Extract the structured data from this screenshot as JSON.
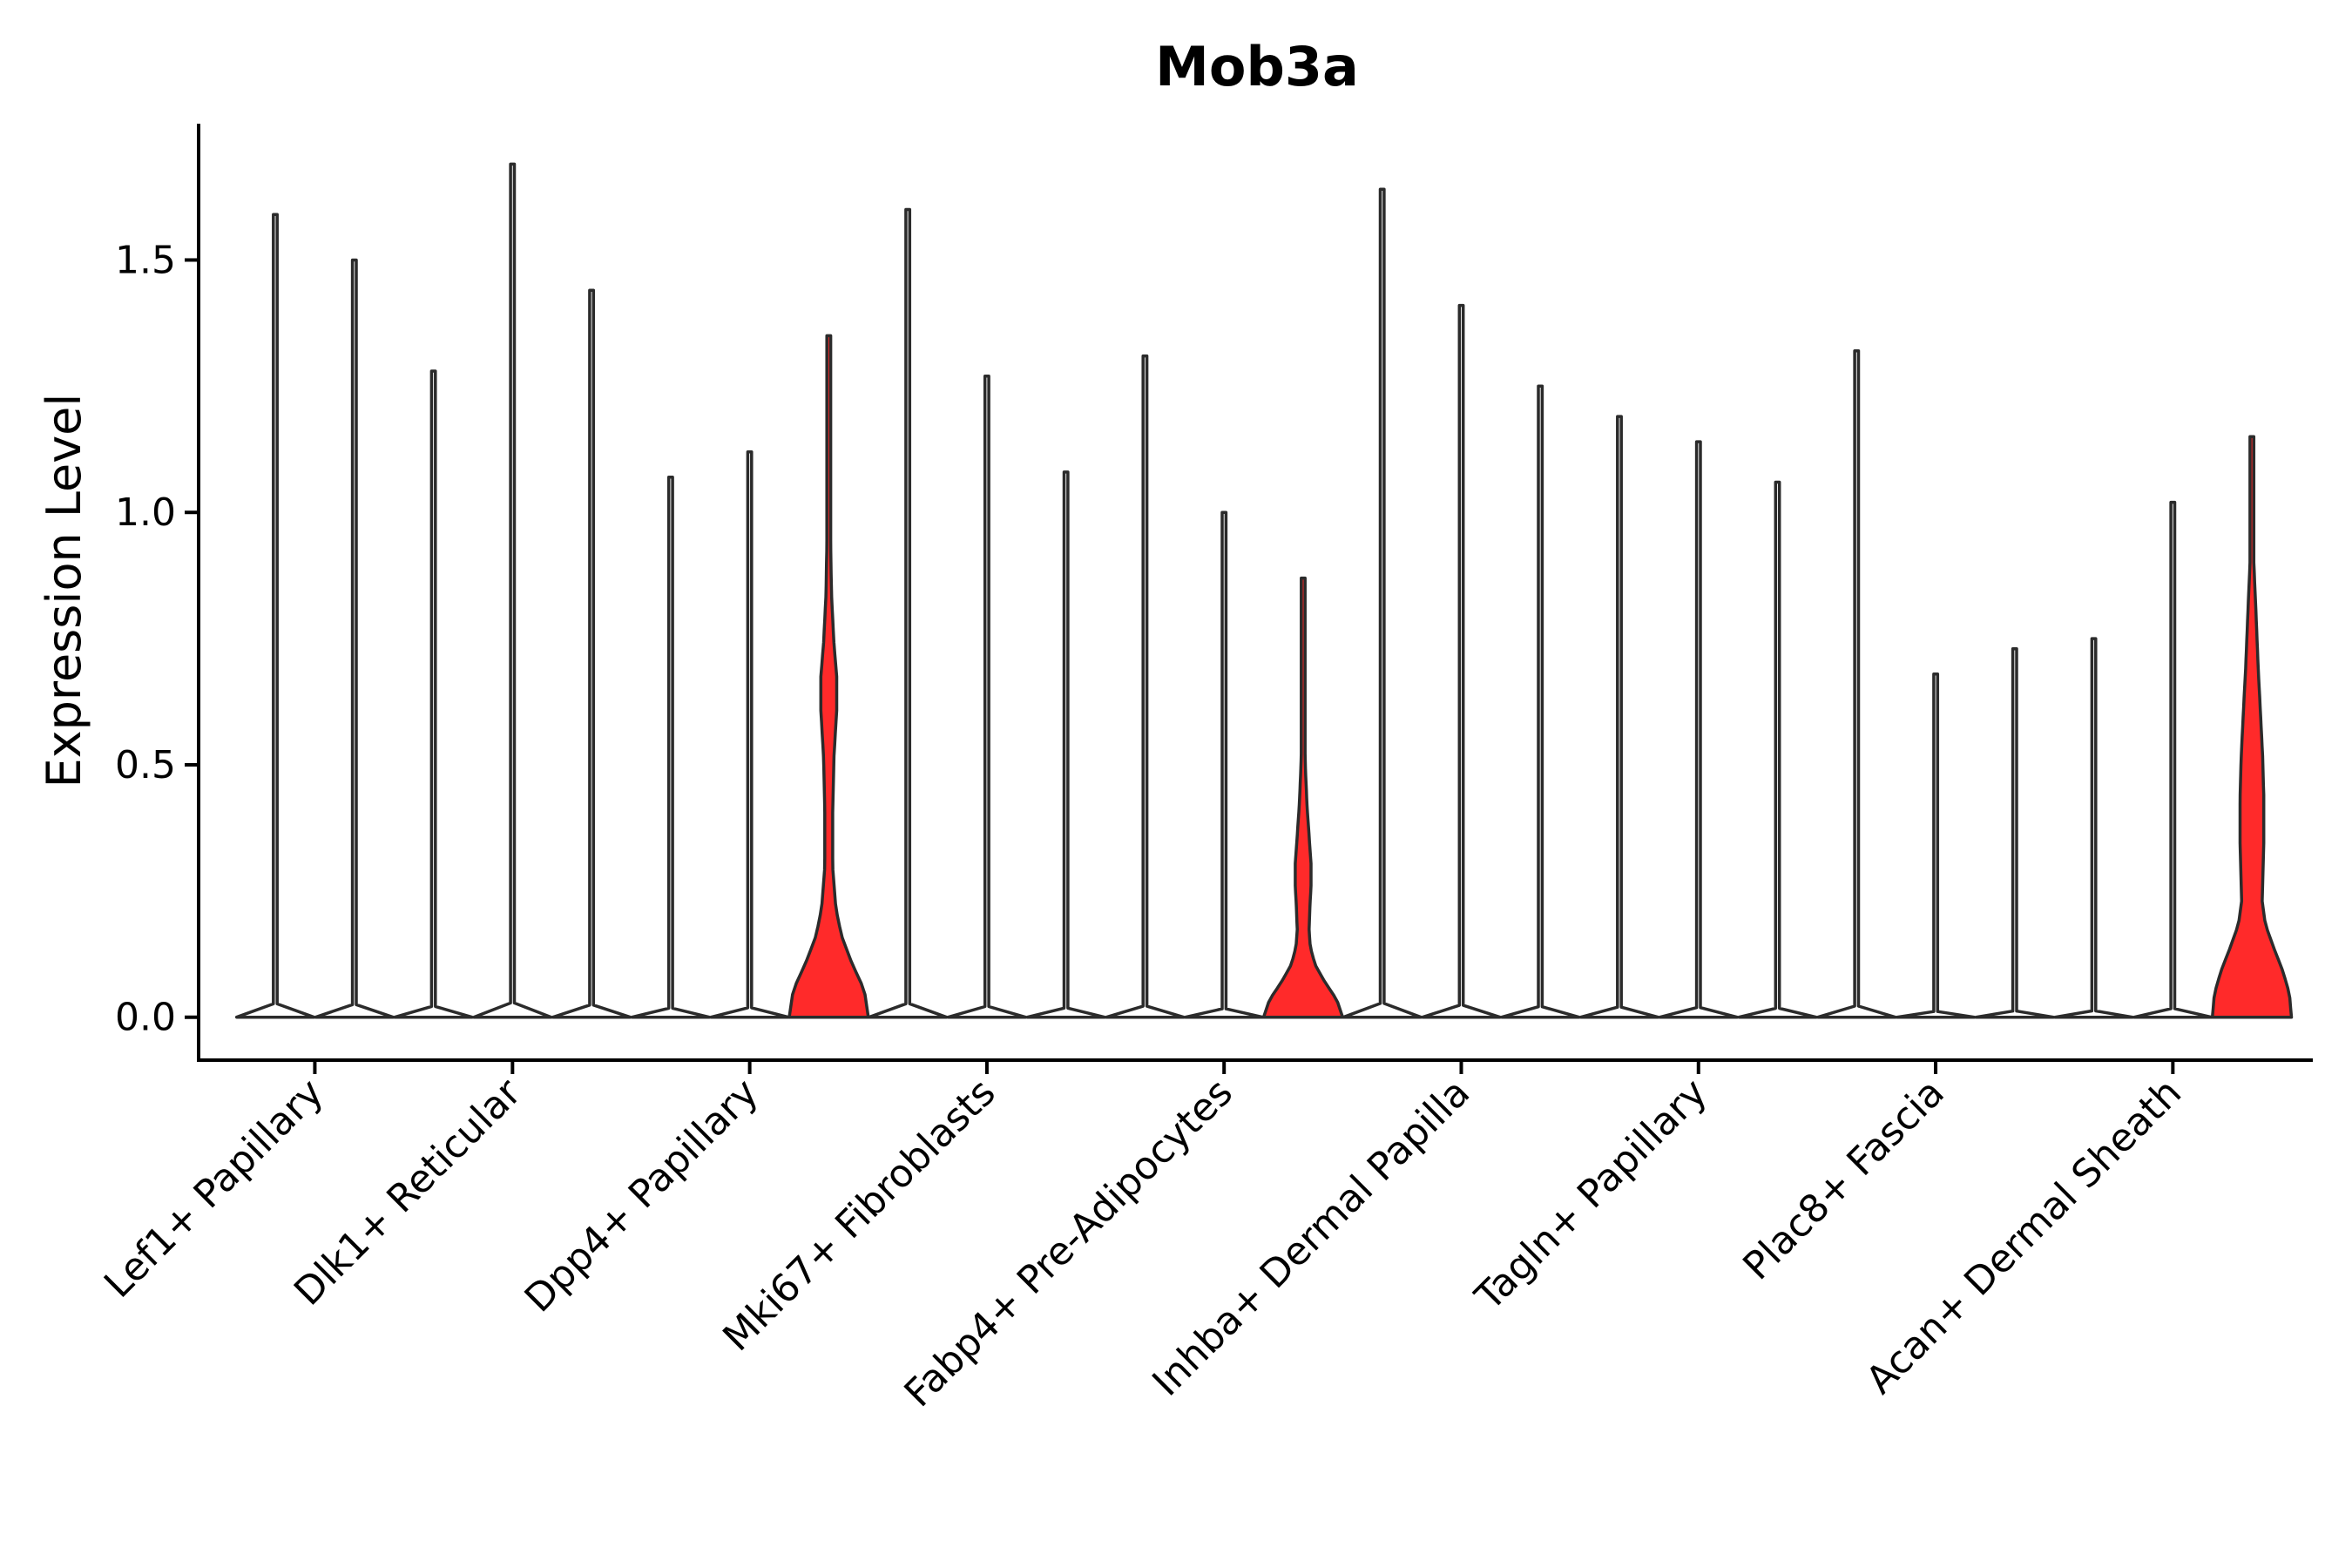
{
  "chart_data": {
    "type": "violin",
    "title": "Mob3a",
    "xlabel": "",
    "ylabel": "Expression Level",
    "ylim": [
      -0.085,
      1.77
    ],
    "yticks": [
      0.0,
      0.5,
      1.0,
      1.5
    ],
    "ytick_labels": [
      "0.0",
      "0.5",
      "1.0",
      "1.5"
    ],
    "grid": false,
    "legend": "none",
    "highlight_color": "#ff2a2a",
    "categories": [
      "Lef1+ Papillary",
      "Dlk1+ Reticular",
      "Dpp4+ Papillary",
      "Mki67+ Fibroblasts",
      "Fabp4+ Pre-Adipocytes",
      "Inhba+ Dermal Papilla",
      "Tagln+ Papillary",
      "Plac8+ Fascia",
      "Acan+ Dermal Sheath"
    ],
    "groups": [
      {
        "category": "Lef1+ Papillary",
        "violins": [
          {
            "max": 1.59,
            "color": "#ffffff",
            "profile": "flat"
          },
          {
            "max": 1.5,
            "color": "#ffffff",
            "profile": "flat"
          }
        ]
      },
      {
        "category": "Dlk1+ Reticular",
        "violins": [
          {
            "max": 1.28,
            "color": "#ffffff",
            "profile": "flat"
          },
          {
            "max": 1.69,
            "color": "#ffffff",
            "profile": "flat"
          },
          {
            "max": 1.44,
            "color": "#ffffff",
            "profile": "flat"
          }
        ]
      },
      {
        "category": "Dpp4+ Papillary",
        "violins": [
          {
            "max": 1.07,
            "color": "#ffffff",
            "profile": "flat"
          },
          {
            "max": 1.12,
            "color": "#ffffff",
            "profile": "flat"
          },
          {
            "max": 1.35,
            "color": "#ff2a2a",
            "profile": "dpp4"
          }
        ]
      },
      {
        "category": "Mki67+ Fibroblasts",
        "violins": [
          {
            "max": 1.6,
            "color": "#ffffff",
            "profile": "flat"
          },
          {
            "max": 1.27,
            "color": "#ffffff",
            "profile": "flat"
          },
          {
            "max": 1.08,
            "color": "#ffffff",
            "profile": "flat"
          }
        ]
      },
      {
        "category": "Fabp4+ Pre-Adipocytes",
        "violins": [
          {
            "max": 1.31,
            "color": "#ffffff",
            "profile": "flat"
          },
          {
            "max": 1.0,
            "color": "#ffffff",
            "profile": "flat"
          },
          {
            "max": 0.87,
            "color": "#ff2a2a",
            "profile": "fabp4"
          }
        ]
      },
      {
        "category": "Inhba+ Dermal Papilla",
        "violins": [
          {
            "max": 1.64,
            "color": "#ffffff",
            "profile": "flat"
          },
          {
            "max": 1.41,
            "color": "#ffffff",
            "profile": "flat"
          },
          {
            "max": 1.25,
            "color": "#ffffff",
            "profile": "flat"
          }
        ]
      },
      {
        "category": "Tagln+ Papillary",
        "violins": [
          {
            "max": 1.19,
            "color": "#ffffff",
            "profile": "flat"
          },
          {
            "max": 1.14,
            "color": "#ffffff",
            "profile": "flat"
          },
          {
            "max": 1.06,
            "color": "#ffffff",
            "profile": "flat"
          }
        ]
      },
      {
        "category": "Plac8+ Fascia",
        "violins": [
          {
            "max": 1.32,
            "color": "#ffffff",
            "profile": "flat"
          },
          {
            "max": 0.68,
            "color": "#ffffff",
            "profile": "flat"
          },
          {
            "max": 0.73,
            "color": "#ffffff",
            "profile": "flat"
          }
        ]
      },
      {
        "category": "Acan+ Dermal Sheath",
        "violins": [
          {
            "max": 0.75,
            "color": "#ffffff",
            "profile": "flat"
          },
          {
            "max": 1.02,
            "color": "#ffffff",
            "profile": "flat"
          },
          {
            "max": 1.15,
            "color": "#ff2a2a",
            "profile": "acan"
          }
        ]
      }
    ],
    "density_profiles": {
      "dpp4": [
        [
          0.0,
          1.0
        ],
        [
          0.04,
          0.9
        ],
        [
          0.08,
          0.58
        ],
        [
          0.12,
          0.32
        ],
        [
          0.16,
          0.18
        ],
        [
          0.22,
          0.1
        ],
        [
          0.3,
          0.1
        ],
        [
          0.38,
          0.13
        ],
        [
          0.45,
          0.2
        ],
        [
          0.5,
          0.2
        ],
        [
          0.55,
          0.13
        ],
        [
          0.62,
          0.07
        ],
        [
          0.72,
          0.04
        ],
        [
          0.85,
          0.02
        ],
        [
          1.0,
          0.0
        ]
      ],
      "fabp4": [
        [
          0.0,
          1.0
        ],
        [
          0.04,
          0.85
        ],
        [
          0.08,
          0.55
        ],
        [
          0.12,
          0.3
        ],
        [
          0.16,
          0.18
        ],
        [
          0.2,
          0.15
        ],
        [
          0.25,
          0.17
        ],
        [
          0.3,
          0.2
        ],
        [
          0.35,
          0.2
        ],
        [
          0.4,
          0.16
        ],
        [
          0.48,
          0.1
        ],
        [
          0.56,
          0.06
        ],
        [
          0.66,
          0.03
        ],
        [
          0.78,
          0.015
        ],
        [
          1.0,
          0.0
        ]
      ],
      "acan": [
        [
          0.0,
          1.0
        ],
        [
          0.04,
          0.95
        ],
        [
          0.08,
          0.78
        ],
        [
          0.12,
          0.55
        ],
        [
          0.16,
          0.34
        ],
        [
          0.2,
          0.26
        ],
        [
          0.25,
          0.28
        ],
        [
          0.3,
          0.3
        ],
        [
          0.38,
          0.3
        ],
        [
          0.45,
          0.27
        ],
        [
          0.52,
          0.22
        ],
        [
          0.6,
          0.16
        ],
        [
          0.7,
          0.1
        ],
        [
          0.78,
          0.05
        ],
        [
          0.9,
          0.02
        ],
        [
          1.0,
          0.0
        ]
      ]
    }
  }
}
